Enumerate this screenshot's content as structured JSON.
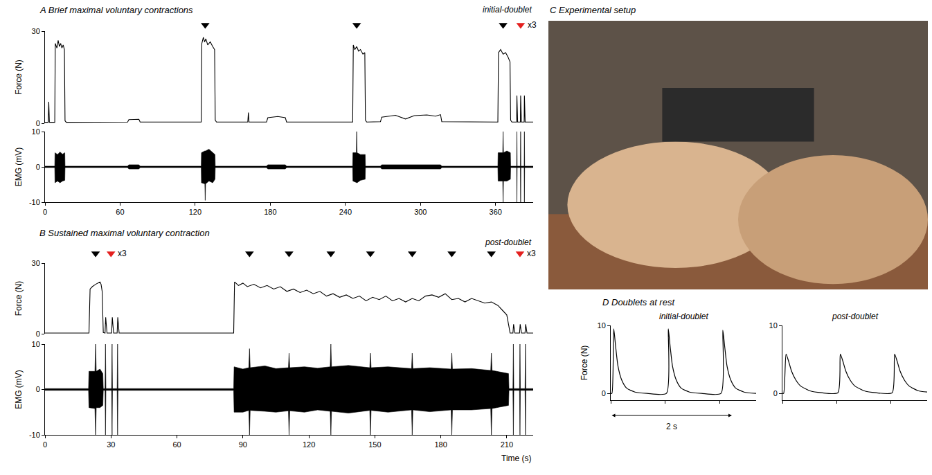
{
  "chart_data": [
    {
      "panel": "A",
      "title": "Brief maximal voluntary contractions",
      "type": "line",
      "annotation": "initial-doublet",
      "xlim": [
        0,
        390
      ],
      "xticks": [
        0,
        60,
        120,
        180,
        240,
        300,
        360
      ],
      "markers": [
        {
          "color": "#000000",
          "marker": "triangle-down",
          "x": [
            128,
            249,
            366
          ]
        },
        {
          "color": "#e4201f",
          "marker": "triangle-down",
          "x": [
            380
          ],
          "label": "x3"
        }
      ],
      "subplots": [
        {
          "type": "line",
          "ylabel": "Force (N)",
          "ylim": [
            0,
            30
          ],
          "yticks": [
            0,
            30
          ],
          "color": "#000000",
          "x": [
            0,
            2.5,
            3,
            3.5,
            7.8,
            8.2,
            9.5,
            10.5,
            11.5,
            12.5,
            13.5,
            14.5,
            15.5,
            16,
            17,
            66,
            67,
            75,
            76,
            124.8,
            125.3,
            126.5,
            127.5,
            128.5,
            130,
            132,
            134,
            135.5,
            136,
            137,
            162,
            162.5,
            163,
            177,
            178,
            186,
            192,
            193,
            245.8,
            246.3,
            247.5,
            249,
            250.5,
            252,
            254,
            255.5,
            256,
            257,
            268,
            269,
            280,
            288,
            295,
            305,
            312,
            316,
            317,
            361.8,
            362.3,
            364,
            366,
            368,
            370,
            371.5,
            372,
            373,
            376.8,
            377,
            377.6,
            379.8,
            380,
            380.6,
            382.8,
            383,
            383.6,
            390
          ],
          "values": [
            0.3,
            0.3,
            7,
            0.3,
            0.3,
            26,
            24.5,
            27,
            25,
            26,
            24.5,
            25.5,
            24,
            0.8,
            0.3,
            0.4,
            1.2,
            1.3,
            0.4,
            0.4,
            26,
            28,
            26.5,
            27.5,
            25.5,
            26.5,
            25,
            24,
            1,
            0.4,
            0.4,
            3.5,
            0.4,
            0.4,
            1.8,
            2.2,
            1.8,
            0.4,
            0.4,
            25.5,
            24,
            25,
            23.5,
            24,
            22.5,
            23,
            1,
            0.4,
            0.5,
            2,
            2.6,
            1.4,
            2.5,
            2.7,
            2.3,
            2.8,
            0.5,
            0.4,
            23,
            24,
            22.5,
            23,
            21.5,
            20,
            1,
            0.4,
            0.4,
            9,
            0.4,
            0.4,
            9,
            0.4,
            0.4,
            9,
            0.4,
            0.4
          ]
        },
        {
          "type": "area",
          "ylabel": "EMG (mV)",
          "ylim": [
            -10,
            10
          ],
          "yticks": [
            -10,
            0,
            10
          ],
          "color": "#000000",
          "x": [
            0,
            7.8,
            8,
            10,
            12,
            14,
            15.8,
            16,
            66,
            67,
            75,
            76,
            124.8,
            125,
            127.7,
            128,
            128.3,
            131,
            134,
            135.8,
            136,
            177,
            178,
            192,
            193,
            245.8,
            246,
            248.7,
            249,
            249.3,
            252,
            255.8,
            256,
            268,
            269,
            316,
            317,
            361.8,
            362,
            365.7,
            366,
            366.3,
            369,
            371.8,
            372,
            376.8,
            377,
            377.2,
            379.8,
            380,
            380.2,
            382.8,
            383,
            383.2,
            390
          ],
          "upper": [
            0.2,
            0.2,
            4,
            3.5,
            4.2,
            3.6,
            4,
            0.2,
            0.2,
            0.6,
            0.6,
            0.2,
            0.2,
            4,
            4.5,
            4.5,
            4.5,
            5,
            4,
            3.5,
            0.2,
            0.2,
            0.6,
            0.6,
            0.2,
            0.2,
            4,
            4,
            10,
            4,
            3.5,
            3.5,
            0.2,
            0.2,
            0.6,
            0.6,
            0.2,
            0.2,
            4,
            4,
            10,
            4,
            4.5,
            4,
            0.2,
            0.2,
            10,
            0.2,
            0.2,
            10,
            0.2,
            0.2,
            10,
            0.2,
            0.2
          ],
          "lower": [
            -0.2,
            -0.2,
            -4.5,
            -4,
            -4.5,
            -4,
            -3.8,
            -0.2,
            -0.2,
            -0.6,
            -0.6,
            -0.2,
            -0.2,
            -4.5,
            -4.8,
            -9.5,
            -4.8,
            -4,
            -4.5,
            -3.5,
            -0.2,
            -0.2,
            -0.6,
            -0.6,
            -0.2,
            -0.2,
            -4,
            -4.5,
            -4.5,
            -4.5,
            -3.8,
            -3.5,
            -0.2,
            -0.2,
            -0.6,
            -0.6,
            -0.2,
            -0.2,
            -4,
            -4,
            -10,
            -4,
            -4,
            -3.5,
            -0.2,
            -0.2,
            -10,
            -0.2,
            -0.2,
            -10,
            -0.2,
            -0.2,
            -10,
            -0.2,
            -0.2
          ]
        }
      ]
    },
    {
      "panel": "B",
      "title": "Sustained maximal voluntary contraction",
      "type": "line",
      "annotation": "post-doublet",
      "xlabel": "Time (s)",
      "xlim": [
        0,
        222
      ],
      "xticks": [
        0,
        30,
        60,
        90,
        120,
        150,
        180,
        210
      ],
      "markers": [
        {
          "color": "#000000",
          "marker": "triangle-down",
          "x": [
            23,
            93,
            111,
            130,
            148,
            167,
            185,
            203
          ]
        },
        {
          "color": "#e4201f",
          "marker": "triangle-down",
          "x": [
            30,
            216
          ],
          "label": "x3"
        }
      ],
      "subplots": [
        {
          "type": "line",
          "ylabel": "Force (N)",
          "ylim": [
            0,
            30
          ],
          "yticks": [
            0,
            30
          ],
          "color": "#000000",
          "x": [
            0,
            20,
            20.5,
            21.5,
            23,
            24,
            25,
            25.5,
            26,
            26.5,
            27.3,
            27.6,
            28.2,
            30.3,
            30.6,
            31.2,
            32.8,
            33.1,
            33.7,
            85.8,
            86.2,
            88,
            90,
            92,
            95,
            98,
            101,
            104,
            107,
            110,
            113,
            116,
            119,
            122,
            125,
            128,
            131,
            134,
            137,
            140,
            143,
            146,
            149,
            152,
            155,
            158,
            161,
            164,
            167,
            170,
            173,
            176,
            179,
            182,
            185,
            188,
            191,
            194,
            197,
            200,
            203,
            206,
            208,
            210,
            211,
            211.5,
            212.8,
            213.1,
            213.7,
            215.8,
            216.1,
            216.7,
            218.3,
            218.6,
            219.2,
            222
          ],
          "values": [
            0.3,
            0.3,
            19,
            20,
            21,
            21.5,
            22,
            21,
            18,
            0.5,
            0.3,
            7,
            0.3,
            0.3,
            7,
            0.3,
            0.3,
            7,
            0.3,
            0.3,
            22,
            20.5,
            21.5,
            20,
            21,
            19.5,
            20.5,
            19,
            20,
            18,
            19,
            17.5,
            18.5,
            17,
            18,
            16,
            17,
            15.5,
            16.5,
            15,
            16,
            14,
            15.5,
            14.5,
            16,
            14,
            15,
            13.5,
            15,
            14,
            16,
            16.5,
            15.5,
            17,
            14.5,
            15,
            13.5,
            15,
            14,
            13,
            13.5,
            12,
            10,
            8,
            3,
            0.3,
            0.3,
            4,
            0.3,
            0.3,
            4,
            0.3,
            0.3,
            4,
            0.3,
            0.3
          ]
        },
        {
          "type": "area",
          "ylabel": "EMG (mV)",
          "ylim": [
            -10,
            10
          ],
          "yticks": [
            -10,
            0,
            10
          ],
          "color": "#000000",
          "x": [
            0,
            19.8,
            20,
            22.7,
            23,
            23.3,
            25,
            26.3,
            26.5,
            27.3,
            27.5,
            27.7,
            30.3,
            30.5,
            30.7,
            32.8,
            33,
            33.2,
            85.8,
            86,
            90,
            92.7,
            93,
            93.3,
            100,
            105,
            110.7,
            111,
            111.3,
            118,
            124,
            129.7,
            130,
            130.3,
            138,
            147.7,
            148,
            148.3,
            156,
            166.7,
            167,
            167.3,
            175,
            184.7,
            185,
            185.3,
            194,
            202.7,
            203,
            203.3,
            210.8,
            211,
            212.8,
            213,
            213.2,
            215.8,
            216,
            216.2,
            218.3,
            218.5,
            218.7,
            222
          ],
          "upper": [
            0.2,
            0.2,
            4,
            4,
            10,
            4,
            4.5,
            3.5,
            0.2,
            0.2,
            10,
            0.2,
            0.2,
            10,
            0.2,
            0.2,
            10,
            0.2,
            0.2,
            5,
            4.5,
            4.8,
            9,
            4.8,
            5.2,
            4.6,
            4.8,
            8,
            4.8,
            5,
            4.7,
            5,
            10,
            5,
            5.3,
            4.8,
            8,
            4.8,
            5,
            4.6,
            8,
            4.6,
            4.8,
            4.5,
            8,
            4.5,
            4.6,
            4.2,
            8,
            4.2,
            3.5,
            0.2,
            0.2,
            10,
            0.2,
            0.2,
            10,
            0.2,
            0.2,
            10,
            0.2,
            0.2
          ],
          "lower": [
            -0.2,
            -0.2,
            -4,
            -4.2,
            -10,
            -4,
            -4,
            -3.5,
            -0.2,
            -0.2,
            -10,
            -0.2,
            -0.2,
            -10,
            -0.2,
            -0.2,
            -10,
            -0.2,
            -0.2,
            -5,
            -5,
            -4.6,
            -10,
            -4.6,
            -4.8,
            -5,
            -4.7,
            -10,
            -4.7,
            -5,
            -4.5,
            -4.8,
            -10,
            -4.8,
            -5.2,
            -4.6,
            -10,
            -4.6,
            -5,
            -4.5,
            -10,
            -4.5,
            -4.9,
            -4.5,
            -10,
            -4.5,
            -4.5,
            -4.2,
            -10,
            -4.2,
            -3.5,
            -0.2,
            -0.2,
            -10,
            -0.2,
            -0.2,
            -10,
            -0.2,
            -0.2,
            -10,
            -0.2,
            -0.2
          ]
        }
      ]
    },
    {
      "panel": "C",
      "title": "Experimental setup",
      "type": "image"
    },
    {
      "panel": "D",
      "title": "Doublets at rest",
      "type": "line",
      "ylabel": "Force (N)",
      "ylim": [
        -1,
        10
      ],
      "yticks": [
        0,
        10
      ],
      "xlim": [
        0,
        2.4
      ],
      "xticks": [
        0,
        0.9,
        1.8
      ],
      "tick_labels": "y",
      "scale_bar": {
        "value": 2,
        "label": "2 s"
      },
      "subplots": [
        {
          "title": "initial-doublet",
          "color": "#000000",
          "x": [
            0,
            0.02,
            0.05,
            0.08,
            0.12,
            0.18,
            0.26,
            0.4,
            0.6,
            0.92,
            0.95,
            0.98,
            1.02,
            1.08,
            1.16,
            1.3,
            1.5,
            1.82,
            1.85,
            1.88,
            1.92,
            1.98,
            2.06,
            2.2,
            2.4
          ],
          "values": [
            0,
            0,
            9.5,
            7,
            4,
            2,
            0.8,
            0.2,
            0,
            0,
            9.5,
            7,
            4,
            2,
            0.8,
            0.2,
            0,
            0,
            9.3,
            7,
            4,
            2,
            0.8,
            0.2,
            0
          ]
        },
        {
          "title": "post-doublet",
          "color": "#000000",
          "x": [
            0,
            0.02,
            0.06,
            0.1,
            0.15,
            0.22,
            0.3,
            0.45,
            0.65,
            0.92,
            0.96,
            1,
            1.05,
            1.12,
            1.2,
            1.35,
            1.55,
            1.82,
            1.86,
            1.9,
            1.95,
            2.02,
            2.1,
            2.25,
            2.4
          ],
          "values": [
            0,
            0,
            5.8,
            4.8,
            3.3,
            2,
            1.1,
            0.4,
            0.1,
            0.1,
            5.8,
            4.8,
            3.3,
            2,
            1.1,
            0.4,
            0.1,
            0.1,
            5.8,
            4.8,
            3.3,
            2,
            1.1,
            0.4,
            0.2
          ]
        }
      ]
    }
  ]
}
